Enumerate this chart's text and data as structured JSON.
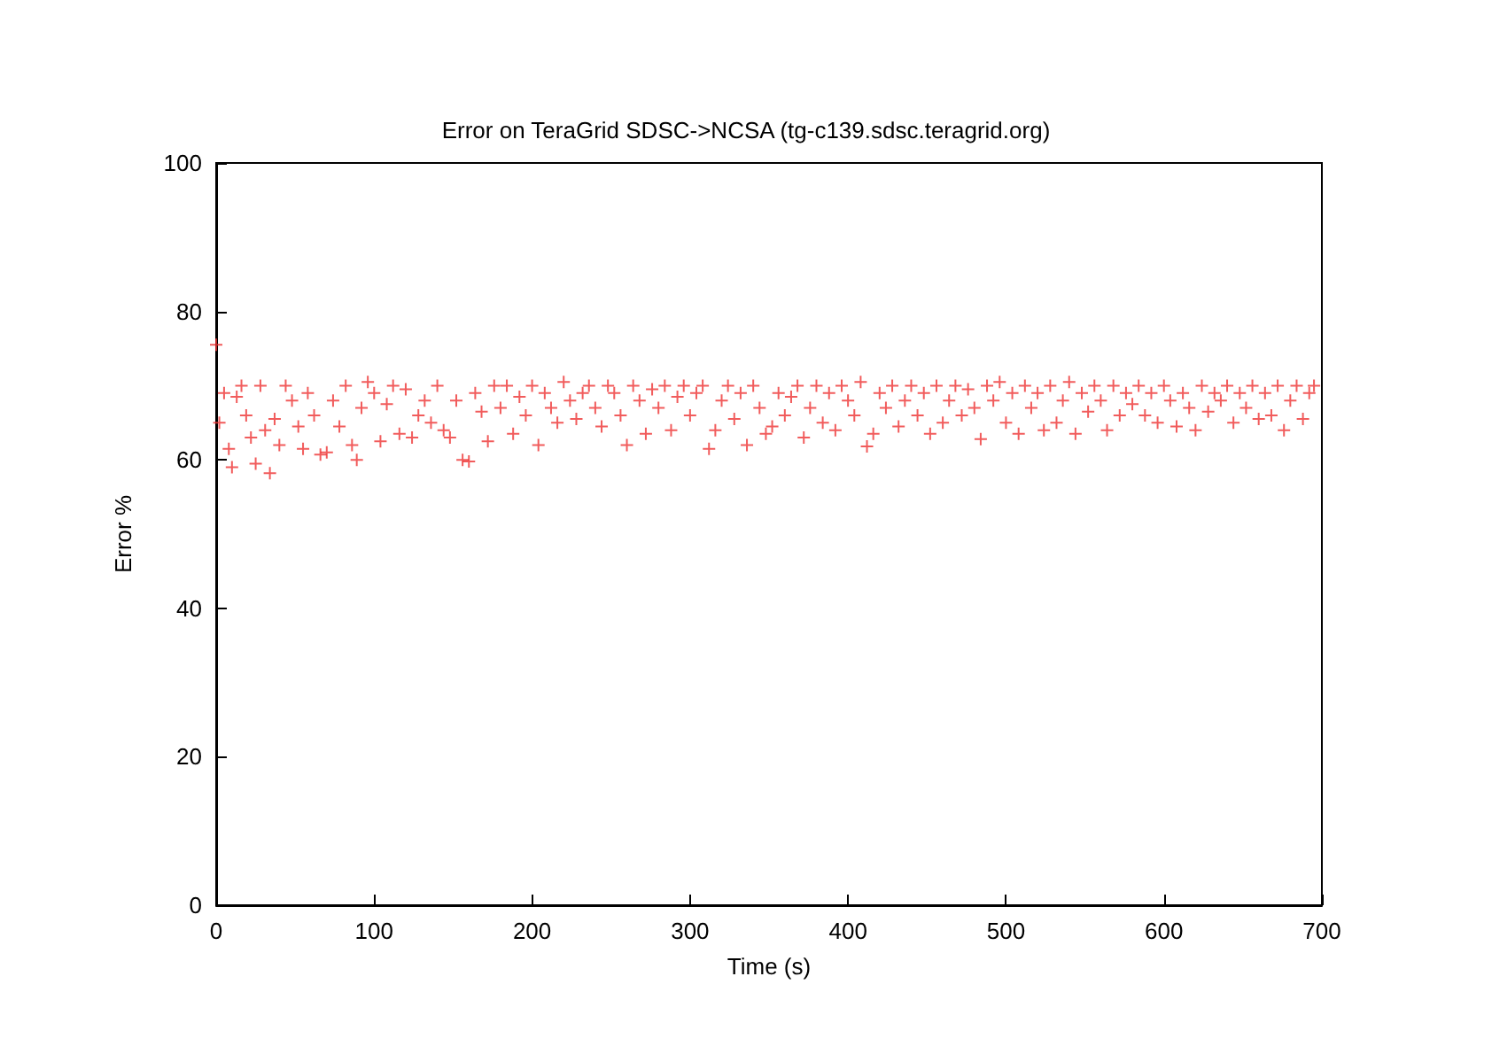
{
  "chart_data": {
    "type": "scatter",
    "title": "Error on TeraGrid SDSC->NCSA (tg-c139.sdsc.teragrid.org)",
    "xlabel": "Time (s)",
    "ylabel": "Error %",
    "xlim": [
      0,
      700
    ],
    "xticks": [
      0,
      100,
      200,
      300,
      400,
      500,
      600,
      700
    ],
    "ylim": [
      0,
      100
    ],
    "yticks": [
      0,
      20,
      40,
      60,
      80,
      100
    ],
    "grid": false,
    "marker": "cross",
    "series": [
      {
        "color": "#ee3333",
        "x": [
          0,
          2,
          5,
          8,
          10,
          13,
          16,
          19,
          22,
          25,
          28,
          31,
          34,
          37,
          40,
          44,
          48,
          52,
          55,
          58,
          62,
          66,
          70,
          74,
          78,
          82,
          86,
          89,
          92,
          96,
          100,
          104,
          108,
          112,
          116,
          120,
          124,
          128,
          132,
          136,
          140,
          144,
          148,
          152,
          156,
          160,
          164,
          168,
          172,
          176,
          180,
          184,
          188,
          192,
          196,
          200,
          204,
          208,
          212,
          216,
          220,
          224,
          228,
          232,
          236,
          240,
          244,
          248,
          252,
          256,
          260,
          264,
          268,
          272,
          276,
          280,
          284,
          288,
          292,
          296,
          300,
          304,
          308,
          312,
          316,
          320,
          324,
          328,
          332,
          336,
          340,
          344,
          348,
          352,
          356,
          360,
          364,
          368,
          372,
          376,
          380,
          384,
          388,
          392,
          396,
          400,
          404,
          408,
          412,
          416,
          420,
          424,
          428,
          432,
          436,
          440,
          444,
          448,
          452,
          456,
          460,
          464,
          468,
          472,
          476,
          480,
          484,
          488,
          492,
          496,
          500,
          504,
          508,
          512,
          516,
          520,
          524,
          528,
          532,
          536,
          540,
          544,
          548,
          552,
          556,
          560,
          564,
          568,
          572,
          576,
          580,
          584,
          588,
          592,
          596,
          600,
          604,
          608,
          612,
          616,
          620,
          624,
          628,
          632,
          636,
          640,
          644,
          648,
          652,
          656,
          660,
          664,
          668,
          672,
          676,
          680,
          684,
          688,
          692,
          695
        ],
        "values": [
          75.5,
          65,
          69,
          61.5,
          59,
          68.5,
          70,
          66,
          63,
          59.5,
          70,
          64,
          58.2,
          65.5,
          62,
          70,
          68,
          64.5,
          61.5,
          69,
          66,
          60.7,
          61,
          68,
          64.5,
          70,
          62,
          60,
          67,
          70.5,
          69,
          62.5,
          67.5,
          70,
          63.5,
          69.5,
          63,
          66,
          68,
          65,
          70,
          64,
          63,
          68,
          60,
          59.8,
          69,
          66.5,
          62.5,
          70,
          67,
          70,
          63.5,
          68.5,
          66,
          70,
          62,
          69,
          67,
          65,
          70.5,
          68,
          65.5,
          69,
          70,
          67,
          64.5,
          70,
          69,
          66,
          62,
          70,
          68,
          63.5,
          69.5,
          67,
          70,
          64,
          68.5,
          70,
          66,
          69,
          70,
          61.5,
          64,
          68,
          70,
          65.5,
          69,
          62,
          70,
          67,
          63.5,
          64.5,
          69,
          66,
          68.5,
          70,
          63,
          67,
          70,
          65,
          69,
          64,
          70,
          68,
          66,
          70.5,
          61.8,
          63.5,
          69,
          67,
          70,
          64.5,
          68,
          70,
          66,
          69,
          63.5,
          70,
          65,
          68,
          70,
          66,
          69.5,
          67,
          62.8,
          70,
          68,
          70.5,
          65,
          69,
          63.5,
          70,
          67,
          69,
          64,
          70,
          65,
          68,
          70.5,
          63.5,
          69,
          66.5,
          70,
          68,
          64,
          70,
          66,
          69,
          67.5,
          70,
          66,
          69,
          65,
          70,
          68,
          64.5,
          69,
          67,
          64,
          70,
          66.5,
          69,
          68,
          70,
          65,
          69,
          67,
          70,
          65.5,
          69,
          66,
          70,
          64,
          68,
          70,
          65.5,
          69,
          70
        ]
      }
    ]
  }
}
